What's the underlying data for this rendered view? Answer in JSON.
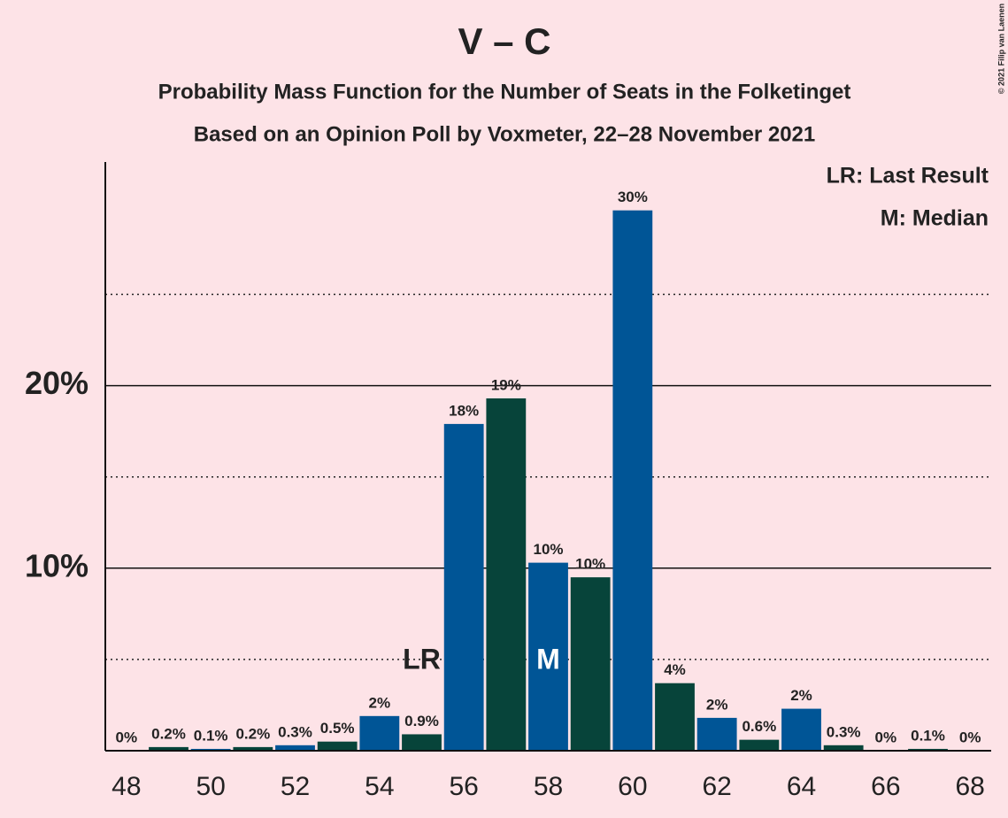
{
  "chart_data": {
    "type": "bar",
    "title": "V – C",
    "subtitles": [
      "Probability Mass Function for the Number of Seats in the Folketinget",
      "Based on an Opinion Poll by Voxmeter, 22–28 November 2021"
    ],
    "x": [
      48,
      49,
      50,
      51,
      52,
      53,
      54,
      55,
      56,
      57,
      58,
      59,
      60,
      61,
      62,
      63,
      64,
      65,
      66,
      67,
      68
    ],
    "values": [
      0,
      0.2,
      0.1,
      0.2,
      0.3,
      0.5,
      1.9,
      0.9,
      17.9,
      19.3,
      10.3,
      9.5,
      29.6,
      3.7,
      1.8,
      0.6,
      2.3,
      0.3,
      0,
      0.1,
      0
    ],
    "value_labels": [
      "0%",
      "0.2%",
      "0.1%",
      "0.2%",
      "0.3%",
      "0.5%",
      "2%",
      "0.9%",
      "18%",
      "19%",
      "10%",
      "10%",
      "30%",
      "4%",
      "2%",
      "0.6%",
      "2%",
      "0.3%",
      "0%",
      "0.1%",
      "0%"
    ],
    "colors": [
      "#005596",
      "#07443a"
    ],
    "xlim": [
      47.5,
      68.5
    ],
    "xticks": [
      48,
      50,
      52,
      54,
      56,
      58,
      60,
      62,
      64,
      66,
      68
    ],
    "ylim": [
      0,
      32.25
    ],
    "yticks": [
      {
        "value": 10,
        "label": "10%"
      },
      {
        "value": 20,
        "label": "20%"
      }
    ],
    "minor_yticks": [
      5,
      15,
      25
    ],
    "markers": [
      {
        "label": "LR",
        "x": 55
      },
      {
        "label": "M",
        "x": 58
      }
    ],
    "legend": [
      "LR: Last Result",
      "M: Median"
    ],
    "copyright": "© 2021 Filip van Laenen"
  }
}
